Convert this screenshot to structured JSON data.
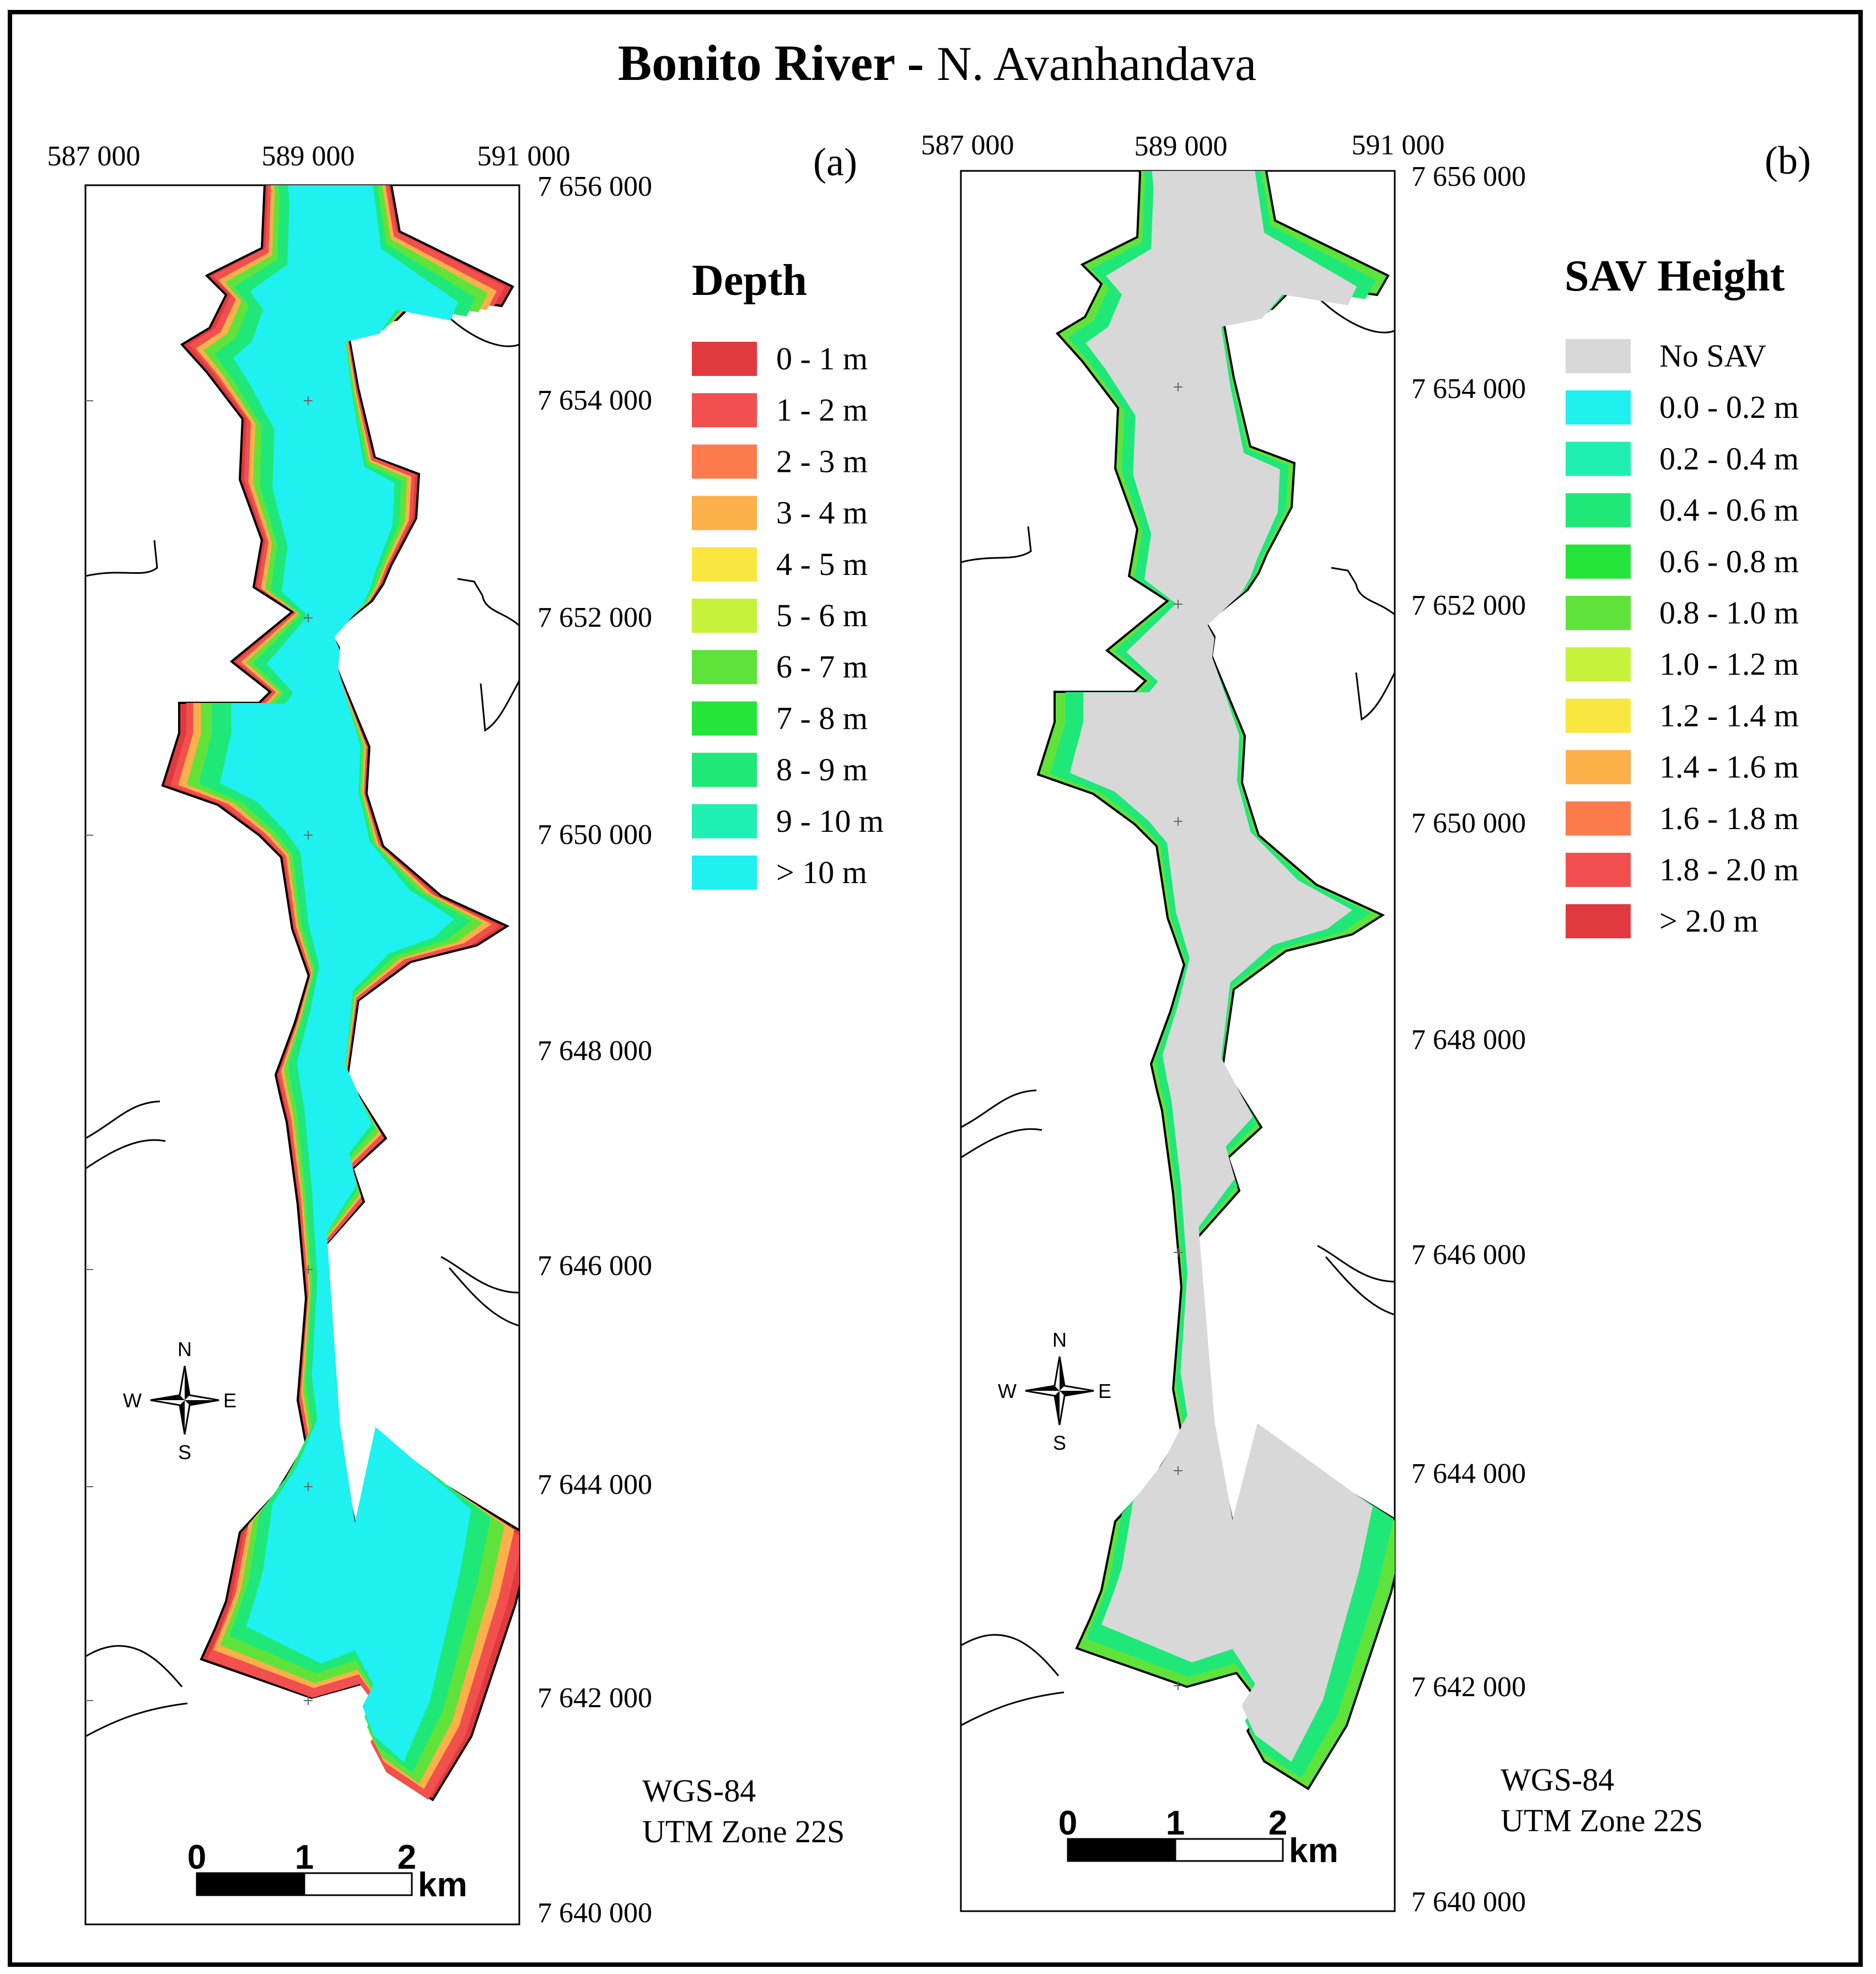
{
  "title": {
    "main": "Bonito River - ",
    "sub": "N. Avanhandava"
  },
  "panels": [
    {
      "id": "a",
      "label": "(a)",
      "x_ticks": [
        "587 000",
        "589 000",
        "591 000"
      ],
      "y_ticks": [
        "7 656 000",
        "7 654 000",
        "7 652 000",
        "7 650 000",
        "7 648 000",
        "7 646 000",
        "7 644 000",
        "7 642 000",
        "7 640 000"
      ],
      "legend_title": "Depth",
      "legend": [
        {
          "label": "0 - 1 m",
          "color": "#e0393e"
        },
        {
          "label": "1 - 2 m",
          "color": "#f24f4f"
        },
        {
          "label": "2 - 3 m",
          "color": "#fb7b4c"
        },
        {
          "label": "3 - 4 m",
          "color": "#fbb04a"
        },
        {
          "label": "4 - 5 m",
          "color": "#fae640"
        },
        {
          "label": "5 - 6 m",
          "color": "#c6f23c"
        },
        {
          "label": "6 - 7 m",
          "color": "#5fe33b"
        },
        {
          "label": "7 - 8 m",
          "color": "#25e43a"
        },
        {
          "label": "8 - 9 m",
          "color": "#1fe878"
        },
        {
          "label": "9 - 10 m",
          "color": "#1ff0b1"
        },
        {
          "label": "> 10 m",
          "color": "#1ff0f0"
        }
      ],
      "datum": [
        "WGS-84",
        "UTM Zone 22S"
      ],
      "scale": [
        "0",
        "1",
        "2",
        "km"
      ],
      "compass": [
        "N",
        "S",
        "W",
        "E"
      ]
    },
    {
      "id": "b",
      "label": "(b)",
      "x_ticks": [
        "587 000",
        "589 000",
        "591 000"
      ],
      "y_ticks": [
        "7 656 000",
        "7 654 000",
        "7 652 000",
        "7 650 000",
        "7 648 000",
        "7 646 000",
        "7 644 000",
        "7 642 000",
        "7 640 000"
      ],
      "legend_title": "SAV Height",
      "legend": [
        {
          "label": "No SAV",
          "color": "#d8d8d8"
        },
        {
          "label": "0.0 - 0.2 m",
          "color": "#1ff0f0"
        },
        {
          "label": "0.2 - 0.4 m",
          "color": "#1ff0b1"
        },
        {
          "label": "0.4 - 0.6 m",
          "color": "#1fe878"
        },
        {
          "label": "0.6 - 0.8 m",
          "color": "#25e43a"
        },
        {
          "label": "0.8 - 1.0 m",
          "color": "#5fe33b"
        },
        {
          "label": "1.0 - 1.2 m",
          "color": "#c6f23c"
        },
        {
          "label": "1.2 - 1.4 m",
          "color": "#fae640"
        },
        {
          "label": "1.4 - 1.6 m",
          "color": "#fbb04a"
        },
        {
          "label": "1.6 - 1.8 m",
          "color": "#fb7b4c"
        },
        {
          "label": "1.8 - 2.0 m",
          "color": "#f24f4f"
        },
        {
          "label": "> 2.0 m",
          "color": "#e0393e"
        }
      ],
      "datum": [
        "WGS-84",
        "UTM Zone  22S"
      ],
      "scale": [
        "0",
        "1",
        "2",
        "km"
      ],
      "compass": [
        "N",
        "S",
        "W",
        "E"
      ]
    }
  ],
  "colors": {
    "depth_shallow": "#e0393e",
    "depth_mid": "#5fe33b",
    "depth_deep": "#1ff0f0",
    "no_sav": "#d8d8d8",
    "sav_low": "#1fe878"
  }
}
